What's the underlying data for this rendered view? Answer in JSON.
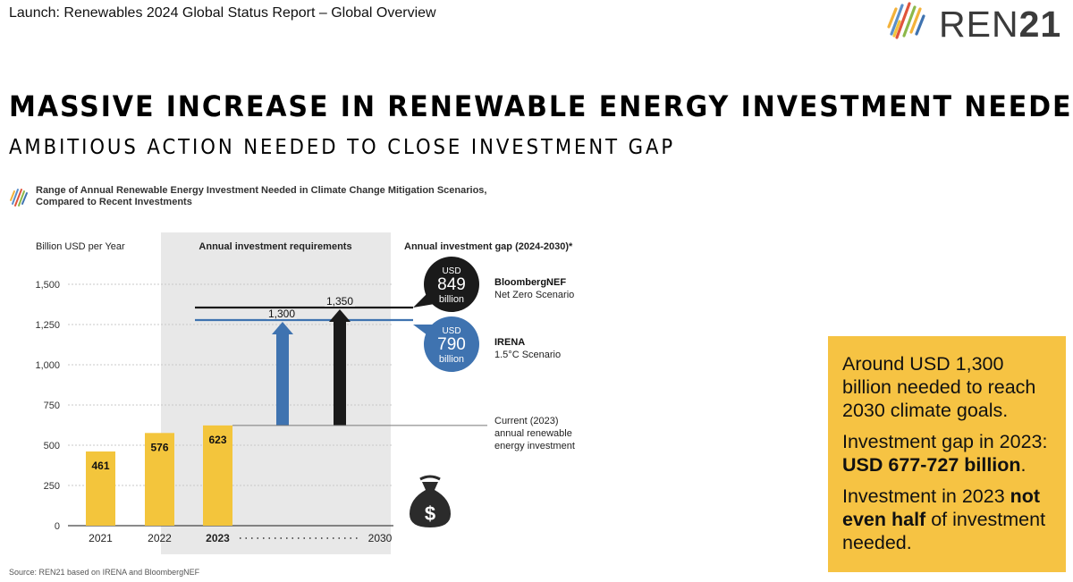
{
  "header": {
    "title": "Launch: Renewables 2024 Global Status Report – Global Overview"
  },
  "logo": {
    "text_light": "REN",
    "text_bold": "21"
  },
  "slide": {
    "title": "MASSIVE INCREASE IN RENEWABLE ENERGY INVESTMENT NEEDED",
    "subtitle": "AMBITIOUS ACTION NEEDED TO CLOSE INVESTMENT GAP"
  },
  "chart_caption": {
    "line1": "Range of Annual Renewable Energy Investment Needed in Climate Change Mitigation Scenarios,",
    "line2": "Compared to Recent Investments"
  },
  "chart_data": {
    "type": "bar",
    "ylabel": "Billion USD per Year",
    "ylim": [
      0,
      1500
    ],
    "yticks": [
      0,
      250,
      500,
      750,
      1000,
      1250,
      1500
    ],
    "ytick_labels": [
      "0",
      "250",
      "500",
      "750",
      "1,000",
      "1,250",
      "1,500"
    ],
    "categories": [
      "2021",
      "2022",
      "2023"
    ],
    "values": [
      461,
      576,
      623
    ],
    "value_labels": [
      "461",
      "576",
      "623"
    ],
    "target_year": "2030",
    "shaded_region_label": "Annual investment requirements",
    "gap_header": "Annual investment gap (2024-2030)*",
    "current_label": [
      "Current (2023)",
      "annual renewable",
      "energy investment"
    ],
    "scenarios": [
      {
        "name": "IRENA",
        "scenario": "1.5°C Scenario",
        "target": 1300,
        "target_label": "1,300",
        "gap_currency": "USD",
        "gap_value": "790",
        "gap_unit": "billion",
        "color": "#3f73b0"
      },
      {
        "name": "BloombergNEF",
        "scenario": "Net Zero Scenario",
        "target": 1350,
        "target_label": "1,350",
        "gap_currency": "USD",
        "gap_value": "849",
        "gap_unit": "billion",
        "color": "#1a1a1a"
      }
    ],
    "bar_color": "#f3c53c",
    "shade_color": "#e8e8e8"
  },
  "source": "Source: REN21 based on IRENA and BloombergNEF",
  "callout": {
    "p1": "Around USD 1,300 billion needed to reach 2030 climate goals.",
    "p2_text": "Investment gap in 2023:",
    "p2_bold": "USD 677-727 billion",
    "p2_end": ".",
    "p3_start": "Investment in 2023",
    "p3_bold": "not even half",
    "p3_end": "of investment needed."
  }
}
